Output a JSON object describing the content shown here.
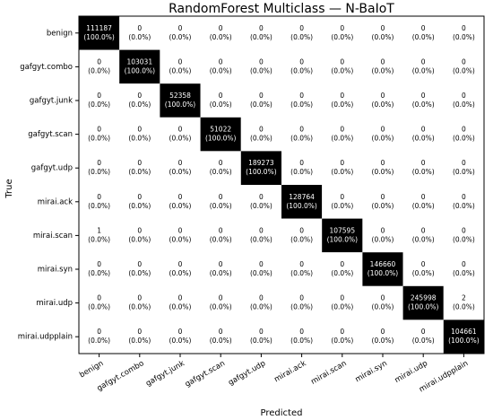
{
  "chart_data": {
    "type": "heatmap",
    "title": "RandomForest Multiclass — N-BaIoT",
    "x_label": "Predicted",
    "y_label": "True",
    "categories": [
      "benign",
      "gafgyt.combo",
      "gafgyt.junk",
      "gafgyt.scan",
      "gafgyt.udp",
      "mirai.ack",
      "mirai.scan",
      "mirai.syn",
      "mirai.udp",
      "mirai.udpplain"
    ],
    "values": [
      [
        111187,
        0,
        0,
        0,
        0,
        0,
        0,
        0,
        0,
        0
      ],
      [
        0,
        103031,
        0,
        0,
        0,
        0,
        0,
        0,
        0,
        0
      ],
      [
        0,
        0,
        52358,
        0,
        0,
        0,
        0,
        0,
        0,
        0
      ],
      [
        0,
        0,
        0,
        51022,
        0,
        0,
        0,
        0,
        0,
        0
      ],
      [
        0,
        0,
        0,
        0,
        189273,
        0,
        0,
        0,
        0,
        0
      ],
      [
        0,
        0,
        0,
        0,
        0,
        128764,
        0,
        0,
        0,
        0
      ],
      [
        1,
        0,
        0,
        0,
        0,
        0,
        107595,
        0,
        0,
        0
      ],
      [
        0,
        0,
        0,
        0,
        0,
        0,
        0,
        146660,
        0,
        0
      ],
      [
        0,
        0,
        0,
        0,
        0,
        0,
        0,
        0,
        245998,
        2
      ],
      [
        0,
        0,
        0,
        0,
        0,
        0,
        0,
        0,
        0,
        104661
      ]
    ],
    "percentages": [
      [
        100.0,
        0,
        0,
        0,
        0,
        0,
        0,
        0,
        0,
        0
      ],
      [
        0,
        100.0,
        0,
        0,
        0,
        0,
        0,
        0,
        0,
        0
      ],
      [
        0,
        0,
        100.0,
        0,
        0,
        0,
        0,
        0,
        0,
        0
      ],
      [
        0,
        0,
        0,
        100.0,
        0,
        0,
        0,
        0,
        0,
        0
      ],
      [
        0,
        0,
        0,
        0,
        100.0,
        0,
        0,
        0,
        0,
        0
      ],
      [
        0,
        0,
        0,
        0,
        0,
        100.0,
        0,
        0,
        0,
        0
      ],
      [
        0,
        0,
        0,
        0,
        0,
        0,
        100.0,
        0,
        0,
        0
      ],
      [
        0,
        0,
        0,
        0,
        0,
        0,
        0,
        100.0,
        0,
        0
      ],
      [
        0,
        0,
        0,
        0,
        0,
        0,
        0,
        0,
        100.0,
        0
      ],
      [
        0,
        0,
        0,
        0,
        0,
        0,
        0,
        0,
        0,
        100.0
      ]
    ],
    "percentage_labels": [
      [
        "(100.0%)",
        "(0.0%)",
        "(0.0%)",
        "(0.0%)",
        "(0.0%)",
        "(0.0%)",
        "(0.0%)",
        "(0.0%)",
        "(0.0%)",
        "(0.0%)"
      ],
      [
        "(0.0%)",
        "(100.0%)",
        "(0.0%)",
        "(0.0%)",
        "(0.0%)",
        "(0.0%)",
        "(0.0%)",
        "(0.0%)",
        "(0.0%)",
        "(0.0%)"
      ],
      [
        "(0.0%)",
        "(0.0%)",
        "(100.0%)",
        "(0.0%)",
        "(0.0%)",
        "(0.0%)",
        "(0.0%)",
        "(0.0%)",
        "(0.0%)",
        "(0.0%)"
      ],
      [
        "(0.0%)",
        "(0.0%)",
        "(0.0%)",
        "(100.0%)",
        "(0.0%)",
        "(0.0%)",
        "(0.0%)",
        "(0.0%)",
        "(0.0%)",
        "(0.0%)"
      ],
      [
        "(0.0%)",
        "(0.0%)",
        "(0.0%)",
        "(0.0%)",
        "(100.0%)",
        "(0.0%)",
        "(0.0%)",
        "(0.0%)",
        "(0.0%)",
        "(0.0%)"
      ],
      [
        "(0.0%)",
        "(0.0%)",
        "(0.0%)",
        "(0.0%)",
        "(0.0%)",
        "(100.0%)",
        "(0.0%)",
        "(0.0%)",
        "(0.0%)",
        "(0.0%)"
      ],
      [
        "(0.0%)",
        "(0.0%)",
        "(0.0%)",
        "(0.0%)",
        "(0.0%)",
        "(0.0%)",
        "(100.0%)",
        "(0.0%)",
        "(0.0%)",
        "(0.0%)"
      ],
      [
        "(0.0%)",
        "(0.0%)",
        "(0.0%)",
        "(0.0%)",
        "(0.0%)",
        "(0.0%)",
        "(0.0%)",
        "(100.0%)",
        "(0.0%)",
        "(0.0%)"
      ],
      [
        "(0.0%)",
        "(0.0%)",
        "(0.0%)",
        "(0.0%)",
        "(0.0%)",
        "(0.0%)",
        "(0.0%)",
        "(0.0%)",
        "(100.0%)",
        "(0.0%)"
      ],
      [
        "(0.0%)",
        "(0.0%)",
        "(0.0%)",
        "(0.0%)",
        "(0.0%)",
        "(0.0%)",
        "(0.0%)",
        "(0.0%)",
        "(0.0%)",
        "(100.0%)"
      ]
    ],
    "color_low": "#ffffff",
    "color_high": "#000000"
  }
}
